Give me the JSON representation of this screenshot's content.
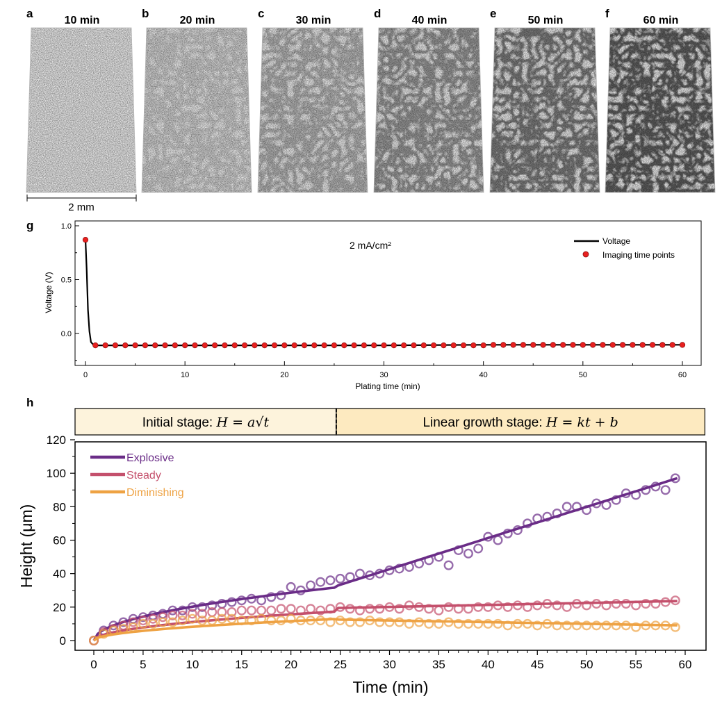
{
  "panels_top": [
    {
      "letter": "a",
      "title": "10 min"
    },
    {
      "letter": "b",
      "title": "20 min"
    },
    {
      "letter": "c",
      "title": "30 min"
    },
    {
      "letter": "d",
      "title": "40 min"
    },
    {
      "letter": "e",
      "title": "50 min"
    },
    {
      "letter": "f",
      "title": "60 min"
    }
  ],
  "scalebar_label": "2 mm",
  "chart_data": [
    {
      "panel": "g",
      "type": "line",
      "annotation": "2 mA/cm²",
      "xlabel": "Plating time (min)",
      "ylabel": "Voltage (V)",
      "xlim": [
        -1,
        62
      ],
      "ylim": [
        -0.28,
        1.0
      ],
      "xticks": [
        0,
        10,
        20,
        30,
        40,
        50,
        60
      ],
      "yticks": [
        1.0,
        0.5,
        0.0
      ],
      "ytick_labels": [
        "1.0",
        "0.5",
        "0.0"
      ],
      "legend": [
        "Voltage",
        "Imaging time points"
      ],
      "legend_position": "top-right",
      "colors": {
        "line": "#000000",
        "points": "#e8201f"
      },
      "series": [
        {
          "name": "Voltage",
          "x": [
            0,
            0.12,
            0.25,
            0.4,
            0.55,
            0.75,
            1.0,
            5,
            10,
            20,
            30,
            40,
            50,
            60
          ],
          "y": [
            0.87,
            0.6,
            0.22,
            0.02,
            -0.08,
            -0.1,
            -0.11,
            -0.11,
            -0.11,
            -0.11,
            -0.11,
            -0.105,
            -0.105,
            -0.105
          ]
        },
        {
          "name": "Imaging time points",
          "x_start": 1,
          "x_end": 60,
          "x_step": 1,
          "y_value": -0.11,
          "first_point": {
            "x": 0,
            "y": 0.87
          }
        }
      ]
    },
    {
      "panel": "h",
      "type": "scatter",
      "stage_boxes": [
        {
          "label": "Initial stage: ",
          "formula": "H = a√t",
          "range": [
            -2,
            24.6
          ]
        },
        {
          "label": "Linear growth stage: ",
          "formula": "H = kt + b",
          "range": [
            24.6,
            62
          ]
        }
      ],
      "xlabel": "Time (min)",
      "ylabel": "Height (μm)",
      "xlim": [
        -2,
        62
      ],
      "ylim": [
        -5,
        120
      ],
      "xticks": [
        0,
        5,
        10,
        15,
        20,
        25,
        30,
        35,
        40,
        45,
        50,
        55,
        60
      ],
      "yticks": [
        0,
        20,
        40,
        60,
        80,
        100,
        120
      ],
      "legend_position": "top-left",
      "series": [
        {
          "name": "Explosive",
          "color": "#6a2c87",
          "points": [
            [
              0,
              0
            ],
            [
              1,
              6
            ],
            [
              2,
              9
            ],
            [
              3,
              11
            ],
            [
              4,
              13
            ],
            [
              5,
              14
            ],
            [
              6,
              15
            ],
            [
              7,
              16
            ],
            [
              8,
              18
            ],
            [
              9,
              18
            ],
            [
              10,
              20
            ],
            [
              11,
              20
            ],
            [
              12,
              21
            ],
            [
              13,
              22
            ],
            [
              14,
              23
            ],
            [
              15,
              24
            ],
            [
              16,
              25
            ],
            [
              17,
              24
            ],
            [
              18,
              26
            ],
            [
              19,
              27
            ],
            [
              20,
              32
            ],
            [
              21,
              30
            ],
            [
              22,
              33
            ],
            [
              23,
              35
            ],
            [
              24,
              36
            ],
            [
              25,
              37
            ],
            [
              26,
              38
            ],
            [
              27,
              40
            ],
            [
              28,
              39
            ],
            [
              29,
              40
            ],
            [
              30,
              42
            ],
            [
              31,
              43
            ],
            [
              32,
              44
            ],
            [
              33,
              46
            ],
            [
              34,
              48
            ],
            [
              35,
              50
            ],
            [
              36,
              45
            ],
            [
              37,
              54
            ],
            [
              38,
              52
            ],
            [
              39,
              55
            ],
            [
              40,
              62
            ],
            [
              41,
              60
            ],
            [
              42,
              64
            ],
            [
              43,
              66
            ],
            [
              44,
              70
            ],
            [
              45,
              73
            ],
            [
              46,
              74
            ],
            [
              47,
              76
            ],
            [
              48,
              80
            ],
            [
              49,
              80
            ],
            [
              50,
              78
            ],
            [
              51,
              82
            ],
            [
              52,
              81
            ],
            [
              53,
              84
            ],
            [
              54,
              88
            ],
            [
              55,
              87
            ],
            [
              56,
              90
            ],
            [
              57,
              92
            ],
            [
              58,
              90
            ],
            [
              59,
              97
            ]
          ],
          "fit": {
            "a": 6.4,
            "t_switch": 24.6,
            "k": 1.862,
            "b": -13.2
          }
        },
        {
          "name": "Steady",
          "color": "#c4506c",
          "points": [
            [
              0,
              0
            ],
            [
              1,
              5
            ],
            [
              2,
              7
            ],
            [
              3,
              9
            ],
            [
              4,
              11
            ],
            [
              5,
              12
            ],
            [
              6,
              13
            ],
            [
              7,
              14
            ],
            [
              8,
              15
            ],
            [
              9,
              15
            ],
            [
              10,
              16
            ],
            [
              11,
              16
            ],
            [
              12,
              17
            ],
            [
              13,
              17
            ],
            [
              14,
              17
            ],
            [
              15,
              18
            ],
            [
              16,
              18
            ],
            [
              17,
              18
            ],
            [
              18,
              18
            ],
            [
              19,
              19
            ],
            [
              20,
              19
            ],
            [
              21,
              18
            ],
            [
              22,
              19
            ],
            [
              23,
              18
            ],
            [
              24,
              19
            ],
            [
              25,
              20
            ],
            [
              26,
              19
            ],
            [
              27,
              18
            ],
            [
              28,
              19
            ],
            [
              29,
              19
            ],
            [
              30,
              20
            ],
            [
              31,
              19
            ],
            [
              32,
              21
            ],
            [
              33,
              20
            ],
            [
              34,
              19
            ],
            [
              35,
              18
            ],
            [
              36,
              20
            ],
            [
              37,
              19
            ],
            [
              38,
              19
            ],
            [
              39,
              20
            ],
            [
              40,
              20
            ],
            [
              41,
              21
            ],
            [
              42,
              20
            ],
            [
              43,
              21
            ],
            [
              44,
              20
            ],
            [
              45,
              21
            ],
            [
              46,
              22
            ],
            [
              47,
              21
            ],
            [
              48,
              20
            ],
            [
              49,
              22
            ],
            [
              50,
              21
            ],
            [
              51,
              22
            ],
            [
              52,
              21
            ],
            [
              53,
              22
            ],
            [
              54,
              22
            ],
            [
              55,
              21
            ],
            [
              56,
              22
            ],
            [
              57,
              22
            ],
            [
              58,
              23
            ],
            [
              59,
              24
            ]
          ],
          "fit": {
            "a": 3.5,
            "t_switch": 24.6,
            "k": 0.12,
            "b": 16.5
          }
        },
        {
          "name": "Diminishing",
          "color": "#eea243",
          "points": [
            [
              0,
              0
            ],
            [
              1,
              4
            ],
            [
              2,
              6
            ],
            [
              3,
              7
            ],
            [
              4,
              8
            ],
            [
              5,
              10
            ],
            [
              6,
              10
            ],
            [
              7,
              11
            ],
            [
              8,
              11
            ],
            [
              9,
              12
            ],
            [
              10,
              13
            ],
            [
              11,
              12
            ],
            [
              12,
              12
            ],
            [
              13,
              13
            ],
            [
              14,
              13
            ],
            [
              15,
              12
            ],
            [
              16,
              12
            ],
            [
              17,
              13
            ],
            [
              18,
              12
            ],
            [
              19,
              12
            ],
            [
              20,
              13
            ],
            [
              21,
              12
            ],
            [
              22,
              12
            ],
            [
              23,
              12
            ],
            [
              24,
              11
            ],
            [
              25,
              12
            ],
            [
              26,
              11
            ],
            [
              27,
              11
            ],
            [
              28,
              12
            ],
            [
              29,
              11
            ],
            [
              30,
              11
            ],
            [
              31,
              11
            ],
            [
              32,
              10
            ],
            [
              33,
              11
            ],
            [
              34,
              10
            ],
            [
              35,
              10
            ],
            [
              36,
              11
            ],
            [
              37,
              10
            ],
            [
              38,
              10
            ],
            [
              39,
              10
            ],
            [
              40,
              10
            ],
            [
              41,
              10
            ],
            [
              42,
              9
            ],
            [
              43,
              10
            ],
            [
              44,
              10
            ],
            [
              45,
              9
            ],
            [
              46,
              10
            ],
            [
              47,
              9
            ],
            [
              48,
              9
            ],
            [
              49,
              9
            ],
            [
              50,
              9
            ],
            [
              51,
              9
            ],
            [
              52,
              9
            ],
            [
              53,
              9
            ],
            [
              54,
              9
            ],
            [
              55,
              8
            ],
            [
              56,
              9
            ],
            [
              57,
              9
            ],
            [
              58,
              9
            ],
            [
              59,
              8
            ]
          ],
          "fit": {
            "a": 2.6,
            "t_switch": 24.6,
            "k": -0.1,
            "b": 15
          }
        }
      ]
    }
  ]
}
